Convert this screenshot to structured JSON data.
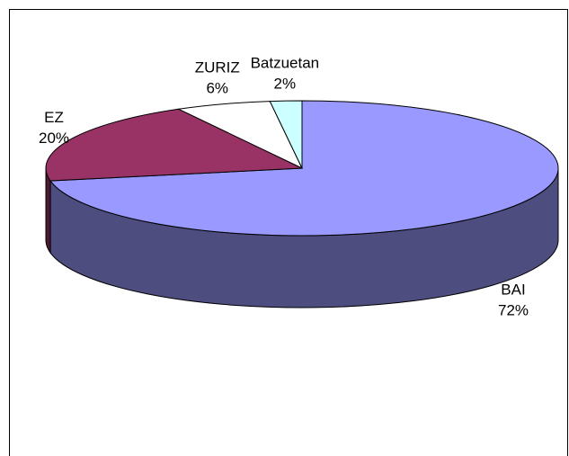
{
  "chart_data": {
    "type": "pie3d",
    "categories": [
      "BAI",
      "EZ",
      "ZURIZ",
      "Batzuetan"
    ],
    "values": [
      72,
      20,
      6,
      2
    ],
    "value_labels": [
      "72%",
      "20%",
      "6%",
      "2%"
    ],
    "colors": [
      "#9999ff",
      "#993366",
      "#ffffff",
      "#ccffff"
    ]
  }
}
